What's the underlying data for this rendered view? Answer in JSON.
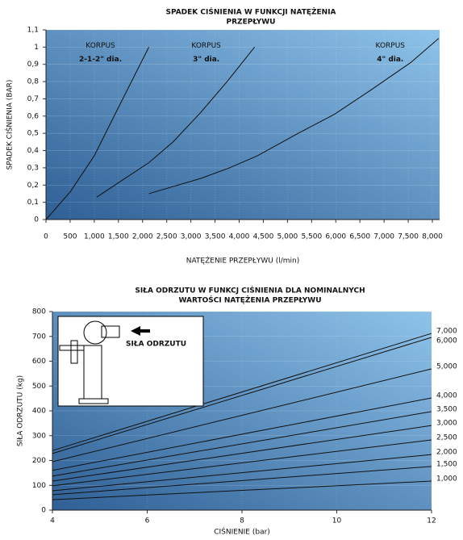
{
  "chart_data": [
    {
      "type": "line",
      "title": [
        "SPADEK CIŚNIENIA W FUNKCJI NATĘŻENIA",
        "PRZEPŁYWU"
      ],
      "x_label": "NATĘŻENIE PRZEPŁYWU (l/min)",
      "y_label": "SPADEK CIŚNIENIA (BAR)",
      "xlim": [
        0,
        8150
      ],
      "ylim": [
        0,
        1.1
      ],
      "xticks": [
        0,
        500,
        {
          "value": 1000,
          "label": "1,000"
        },
        {
          "value": 1500,
          "label": "1,500"
        },
        {
          "value": 2000,
          "label": "2,000"
        },
        {
          "value": 2500,
          "label": "2,500"
        },
        {
          "value": 3000,
          "label": "3,000"
        },
        {
          "value": 3500,
          "label": "3,500"
        },
        {
          "value": 4000,
          "label": "4,000"
        },
        {
          "value": 4500,
          "label": "4,500"
        },
        {
          "value": 5000,
          "label": "5,000"
        },
        {
          "value": 5500,
          "label": "5,500"
        },
        {
          "value": 6000,
          "label": "6,000"
        },
        {
          "value": 6500,
          "label": "6,500"
        },
        {
          "value": 7000,
          "label": "7,000"
        },
        {
          "value": 7500,
          "label": "7,500"
        },
        {
          "value": 8000,
          "label": "8,000"
        }
      ],
      "yticks": [
        0,
        {
          "value": 0.1,
          "label": "0,1"
        },
        {
          "value": 0.2,
          "label": "0,2"
        },
        {
          "value": 0.3,
          "label": "0,3"
        },
        {
          "value": 0.4,
          "label": "0,4"
        },
        {
          "value": 0.5,
          "label": "0,5"
        },
        {
          "value": 0.6,
          "label": "0,6"
        },
        {
          "value": 0.7,
          "label": "0,7"
        },
        {
          "value": 0.8,
          "label": "0,8"
        },
        {
          "value": 0.9,
          "label": "0,9"
        },
        1,
        {
          "value": 1.1,
          "label": "1,1"
        }
      ],
      "grid": true,
      "series": [
        {
          "name": "2-1-2\" dia.",
          "label": "KORPUS",
          "color": "#111111",
          "x": [
            0,
            500,
            1000,
            1500,
            2130
          ],
          "values": [
            0,
            0.16,
            0.37,
            0.65,
            1.0
          ]
        },
        {
          "name": "3\" dia.",
          "label": "KORPUS",
          "color": "#111111",
          "x": [
            1050,
            2130,
            2630,
            3200,
            3750,
            4320
          ],
          "values": [
            0.13,
            0.33,
            0.45,
            0.62,
            0.8,
            1.0
          ]
        },
        {
          "name": "4\" dia.",
          "label": "KORPUS",
          "color": "#111111",
          "x": [
            2130,
            3220,
            3800,
            4380,
            5220,
            5970,
            6720,
            7550,
            8130
          ],
          "values": [
            0.15,
            0.24,
            0.3,
            0.37,
            0.5,
            0.61,
            0.75,
            0.91,
            1.05
          ]
        }
      ]
    },
    {
      "type": "line",
      "title": [
        "SIŁA ODRZUTU W FUNKCJ CIŚNIENIA DLA NOMINALNYCH",
        "WARTOŚCI NATĘŻENIA PRZEPŁYWU"
      ],
      "x_label": "CIŚNIENIE (bar)",
      "y_label": "SIŁA ODRZUTU (kg)",
      "inset_label": "SIŁA ODRZUTU",
      "xlim": [
        4,
        12
      ],
      "ylim": [
        0,
        800
      ],
      "xticks": [
        4,
        6,
        8,
        10,
        12
      ],
      "yticks": [
        0,
        100,
        200,
        300,
        400,
        500,
        600,
        700,
        800
      ],
      "grid": true,
      "series": [
        {
          "name": "7,000",
          "color": "#111111",
          "x": [
            4,
            12
          ],
          "values": [
            240,
            712
          ]
        },
        {
          "name": "6,000",
          "color": "#111111",
          "x": [
            4,
            12
          ],
          "values": [
            228,
            696
          ]
        },
        {
          "name": "5,000",
          "color": "#111111",
          "x": [
            4,
            12
          ],
          "values": [
            195,
            569
          ]
        },
        {
          "name": "4,000",
          "color": "#111111",
          "x": [
            4,
            12
          ],
          "values": [
            160,
            452
          ]
        },
        {
          "name": "3,500",
          "color": "#111111",
          "x": [
            4,
            12
          ],
          "values": [
            137,
            397
          ]
        },
        {
          "name": "3,000",
          "color": "#111111",
          "x": [
            4,
            12
          ],
          "values": [
            117,
            341
          ]
        },
        {
          "name": "2,500",
          "color": "#111111",
          "x": [
            4,
            12
          ],
          "values": [
            98,
            283
          ]
        },
        {
          "name": "2,000",
          "color": "#111111",
          "x": [
            4,
            12
          ],
          "values": [
            78,
            224
          ]
        },
        {
          "name": "1,500",
          "color": "#111111",
          "x": [
            4,
            12
          ],
          "values": [
            62,
            176
          ]
        },
        {
          "name": "1,000",
          "color": "#111111",
          "x": [
            4,
            12
          ],
          "values": [
            42,
            117
          ]
        }
      ]
    }
  ]
}
